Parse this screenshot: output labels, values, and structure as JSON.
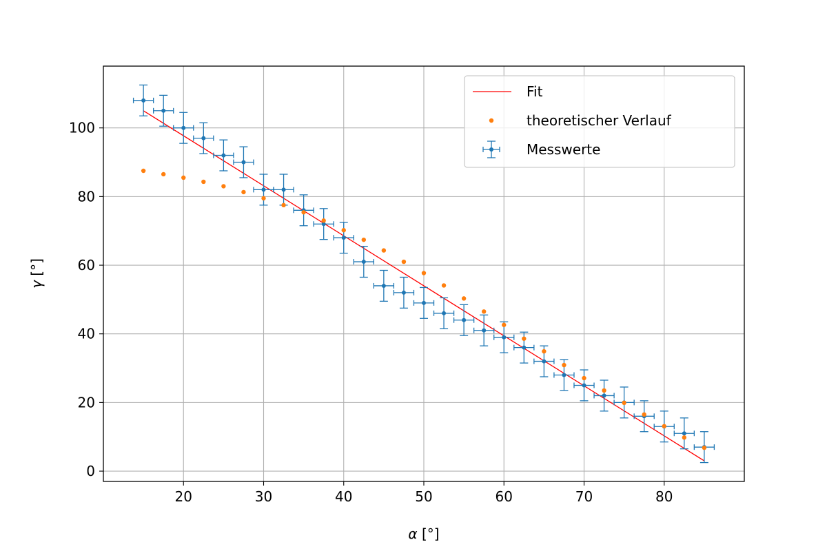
{
  "chart_data": {
    "type": "scatter",
    "title": "",
    "xlabel": {
      "symbol": "α",
      "unit": " [°]"
    },
    "ylabel": {
      "symbol": "γ",
      "unit": " [°]"
    },
    "xlim": [
      10,
      90
    ],
    "ylim": [
      -3,
      118
    ],
    "xticks": [
      20,
      30,
      40,
      50,
      60,
      70,
      80
    ],
    "yticks": [
      0,
      20,
      40,
      60,
      80,
      100
    ],
    "grid": true,
    "legend_position": "top-right",
    "colors": {
      "fit": "#ff0000",
      "theory": "#ff7f0e",
      "measured": "#1f77b4",
      "grid": "#b0b0b0"
    },
    "series": [
      {
        "name": "Fit",
        "kind": "line",
        "x": [
          15,
          85
        ],
        "y": [
          105,
          3
        ]
      },
      {
        "name": "theoretischer Verlauf",
        "kind": "points",
        "x": [
          15,
          17.5,
          20,
          22.5,
          25,
          27.5,
          30,
          32.5,
          35,
          37.5,
          40,
          42.5,
          45,
          47.5,
          50,
          52.5,
          55,
          57.5,
          60,
          62.5,
          65,
          67.5,
          70,
          72.5,
          75,
          77.5,
          80,
          82.5,
          85
        ],
        "y": [
          87.5,
          86.5,
          85.5,
          84.3,
          83,
          81.3,
          79.5,
          77.5,
          75.4,
          73,
          70.2,
          67.4,
          64.3,
          61,
          57.7,
          54.1,
          50.3,
          46.5,
          42.6,
          38.6,
          34.9,
          30.9,
          27.1,
          23.5,
          19.9,
          16.5,
          13.1,
          9.8,
          6.8
        ]
      },
      {
        "name": "Messwerte",
        "kind": "errorbar",
        "x": [
          15,
          17.5,
          20,
          22.5,
          25,
          27.5,
          30,
          32.5,
          35,
          37.5,
          40,
          42.5,
          45,
          47.5,
          50,
          52.5,
          55,
          57.5,
          60,
          62.5,
          65,
          67.5,
          70,
          72.5,
          75,
          77.5,
          80,
          82.5,
          85
        ],
        "y": [
          108,
          105,
          100,
          97,
          92,
          90,
          82,
          82,
          76,
          72,
          68,
          61,
          54,
          52,
          49,
          46,
          44,
          41,
          39,
          36,
          32,
          28,
          25,
          22,
          20,
          16,
          13,
          11,
          7
        ],
        "xerr": 1.25,
        "yerr": 4.5
      }
    ]
  }
}
